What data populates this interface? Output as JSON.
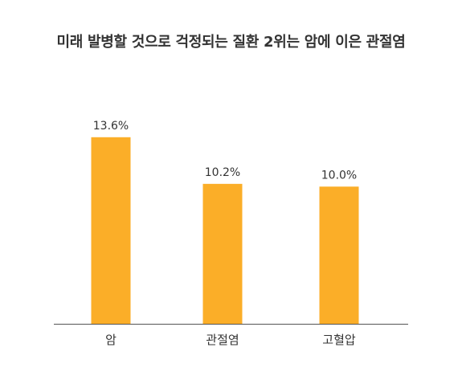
{
  "chart_data": {
    "type": "bar",
    "title": "미래 발병할 것으로 걱정되는 질환 2위는 암에 이은 관절염",
    "xlabel": "",
    "ylabel": "",
    "categories": [
      "암",
      "관절염",
      "고혈압"
    ],
    "values": [
      13.6,
      10.2,
      10.0
    ],
    "data_labels": [
      "13.6%",
      "10.2%",
      "10.0%"
    ],
    "ylim": [
      0,
      14.7
    ],
    "grid": false,
    "legend": "none",
    "bar_color": "#FBAE28",
    "axis_color": "#555555"
  }
}
